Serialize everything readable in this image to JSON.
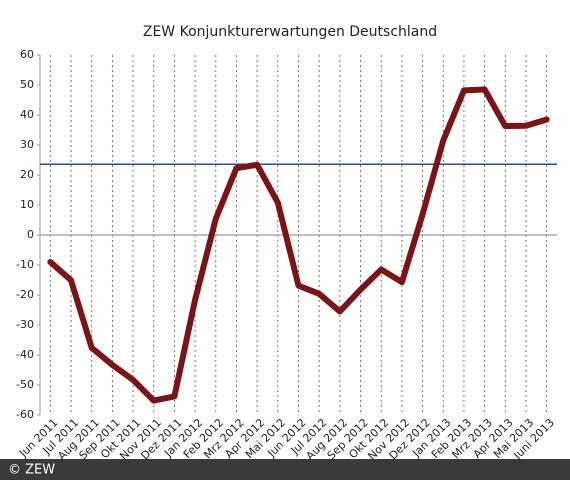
{
  "chart_data": {
    "type": "line",
    "title": "ZEW Konjunkturerwartungen Deutschland",
    "categories": [
      "Jun 2011",
      "Jul 2011",
      "Aug 2011",
      "Sep 2011",
      "Okt 2011",
      "Nov 2011",
      "Dez 2011",
      "Jan 2012",
      "Feb 2012",
      "Mrz 2012",
      "Apr 2012",
      "Mai 2012",
      "Jun 2012",
      "Jul 2012",
      "Aug 2012",
      "Sep 2012",
      "Okt 2012",
      "Nov 2012",
      "Dez 2012",
      "Jan 2013",
      "Feb 2013",
      "Mrz 2013",
      "Apr 2013",
      "Mai 2013",
      "Juni 2013"
    ],
    "values": [
      -9.0,
      -15.1,
      -37.6,
      -43.3,
      -48.3,
      -55.2,
      -53.8,
      -21.6,
      5.4,
      22.3,
      23.4,
      10.8,
      -16.9,
      -19.6,
      -25.5,
      -18.2,
      -11.5,
      -15.7,
      6.9,
      31.5,
      48.2,
      48.5,
      36.3,
      36.4,
      38.5
    ],
    "color": "#7a1416",
    "ylim": [
      -60,
      60
    ],
    "yticks": [
      -60,
      -50,
      -40,
      -30,
      -20,
      -10,
      0,
      10,
      20,
      30,
      40,
      50,
      60
    ],
    "grid": true,
    "hlines": [
      {
        "value": 0,
        "color": "#aaaaaa"
      },
      {
        "value": 23.6,
        "color": "#2a4a9e"
      }
    ]
  },
  "footer": "© ZEW"
}
